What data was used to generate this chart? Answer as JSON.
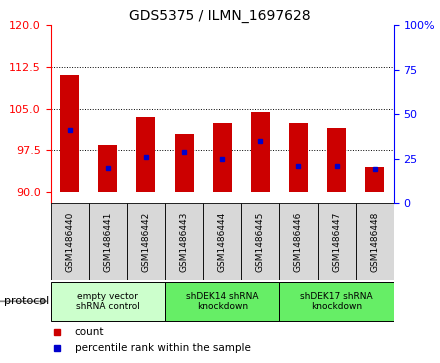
{
  "title": "GDS5375 / ILMN_1697628",
  "samples": [
    "GSM1486440",
    "GSM1486441",
    "GSM1486442",
    "GSM1486443",
    "GSM1486444",
    "GSM1486445",
    "GSM1486446",
    "GSM1486447",
    "GSM1486448"
  ],
  "bar_bottom": 90,
  "bar_tops": [
    111.0,
    98.5,
    103.5,
    100.5,
    102.5,
    104.5,
    102.5,
    101.5,
    94.5
  ],
  "percentile_values": [
    41,
    20,
    26,
    29,
    25,
    35,
    21,
    21,
    19
  ],
  "ylim_left": [
    88,
    120
  ],
  "ylim_right": [
    0,
    100
  ],
  "yticks_left": [
    90,
    97.5,
    105,
    112.5,
    120
  ],
  "yticks_right": [
    0,
    25,
    50,
    75,
    100
  ],
  "bar_color": "#cc0000",
  "percentile_color": "#0000cc",
  "bg_color": "#ffffff",
  "plot_bg": "#ffffff",
  "protocol_groups": [
    {
      "label": "empty vector\nshRNA control",
      "start": 0,
      "end": 3,
      "color": "#ccffcc"
    },
    {
      "label": "shDEK14 shRNA\nknockdown",
      "start": 3,
      "end": 6,
      "color": "#66ee66"
    },
    {
      "label": "shDEK17 shRNA\nknockdown",
      "start": 6,
      "end": 9,
      "color": "#66ee66"
    }
  ],
  "legend_items": [
    {
      "label": "count",
      "color": "#cc0000"
    },
    {
      "label": "percentile rank within the sample",
      "color": "#0000cc"
    }
  ],
  "gridlines_at": [
    97.5,
    105.0,
    112.5
  ],
  "bar_width": 0.5
}
